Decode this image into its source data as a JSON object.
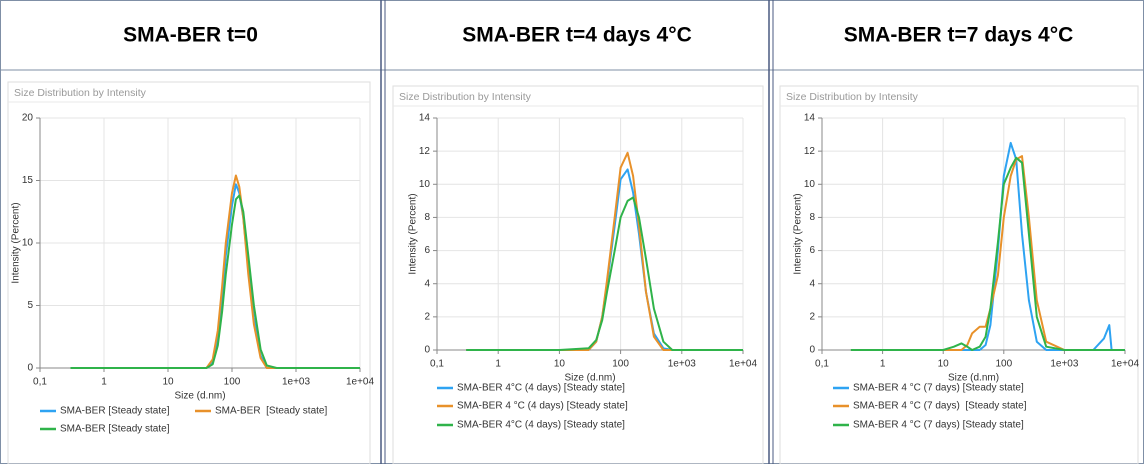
{
  "chart_data": [
    {
      "type": "line",
      "title": "SMA-BER t=0",
      "subtitle": "Size Distribution by Intensity",
      "x_label": "Size (d.nm)",
      "y_label": "Intensity (Percent)",
      "log_scale_x": true,
      "grid": true,
      "xlim": [
        0.1,
        10000
      ],
      "xticks": [
        {
          "value": 0.1,
          "label": "0,1"
        },
        1,
        10,
        100,
        {
          "value": 1000,
          "label": "1e+03"
        },
        {
          "value": 10000,
          "label": "1e+04"
        }
      ],
      "ylim": [
        0,
        20
      ],
      "yticks": [
        0,
        5,
        10,
        15,
        20
      ],
      "x": [
        0.3,
        1,
        10,
        40,
        50,
        60,
        70,
        80,
        100,
        115,
        130,
        150,
        180,
        220,
        280,
        350,
        500,
        1000,
        10000
      ],
      "series": [
        {
          "name": "SMA-BER [Steady state]",
          "color": "#2ea3f2",
          "values": [
            0,
            0,
            0,
            0,
            0.5,
            2.5,
            5.5,
            9,
            13,
            14.7,
            14,
            12,
            8,
            4,
            1,
            0,
            0,
            0,
            0
          ]
        },
        {
          "name": "SMA-BER  [Steady state]",
          "color": "#e8912a",
          "values": [
            0,
            0,
            0,
            0,
            0.7,
            3,
            6.5,
            10,
            14,
            15.4,
            14.5,
            12,
            7.5,
            3.5,
            0.8,
            0,
            0,
            0,
            0
          ]
        },
        {
          "name": "SMA-BER [Steady state]",
          "color": "#2fb34a",
          "values": [
            0,
            0,
            0,
            0,
            0.3,
            1.8,
            4.5,
            7.5,
            11.5,
            13.5,
            13.8,
            12.5,
            9,
            5,
            1.5,
            0.2,
            0,
            0,
            0
          ]
        }
      ]
    },
    {
      "type": "line",
      "title": "SMA-BER t=4 days 4°C",
      "subtitle": "Size Distribution by Intensity",
      "x_label": "Size (d.nm)",
      "y_label": "Intensity (Percent)",
      "log_scale_x": true,
      "grid": true,
      "xlim": [
        0.1,
        10000
      ],
      "xticks": [
        {
          "value": 0.1,
          "label": "0,1"
        },
        1,
        10,
        100,
        {
          "value": 1000,
          "label": "1e+03"
        },
        {
          "value": 10000,
          "label": "1e+04"
        }
      ],
      "ylim": [
        0,
        14
      ],
      "yticks": [
        0,
        2,
        4,
        6,
        8,
        10,
        12,
        14
      ],
      "x": [
        0.3,
        1,
        10,
        30,
        40,
        50,
        60,
        80,
        100,
        130,
        160,
        200,
        260,
        350,
        500,
        700,
        1000,
        10000
      ],
      "series": [
        {
          "name": "SMA-BER 4°C (4 days) [Steady state]",
          "color": "#2ea3f2",
          "values": [
            0,
            0,
            0,
            0,
            0.5,
            2,
            4,
            7.5,
            10.3,
            10.9,
            9.5,
            7,
            3.5,
            1,
            0.1,
            0,
            0,
            0
          ]
        },
        {
          "name": "SMA-BER 4 °C (4 days) [Steady state]",
          "color": "#e8912a",
          "values": [
            0,
            0,
            0,
            0,
            0.5,
            2,
            4.2,
            8,
            11,
            11.9,
            10.5,
            7.5,
            3.5,
            0.8,
            0,
            0,
            0,
            0
          ]
        },
        {
          "name": "SMA-BER 4°C (4 days) [Steady state]",
          "color": "#2fb34a",
          "values": [
            0,
            0,
            0,
            0.1,
            0.6,
            1.8,
            3.5,
            6,
            8,
            9,
            9.2,
            8,
            5.5,
            2.5,
            0.5,
            0,
            0,
            0
          ]
        }
      ]
    },
    {
      "type": "line",
      "title": "SMA-BER t=7 days 4°C",
      "subtitle": "Size Distribution by Intensity",
      "x_label": "Size (d.nm)",
      "y_label": "Intensity (Percent)",
      "log_scale_x": true,
      "grid": true,
      "xlim": [
        0.1,
        10000
      ],
      "xticks": [
        {
          "value": 0.1,
          "label": "0,1"
        },
        1,
        10,
        100,
        {
          "value": 1000,
          "label": "1e+03"
        },
        {
          "value": 10000,
          "label": "1e+04"
        }
      ],
      "ylim": [
        0,
        14
      ],
      "yticks": [
        0,
        2,
        4,
        6,
        8,
        10,
        12,
        14
      ],
      "x": [
        0.3,
        1,
        10,
        15,
        20,
        25,
        30,
        40,
        50,
        60,
        80,
        100,
        130,
        160,
        200,
        260,
        350,
        500,
        1000,
        3000,
        4500,
        5500,
        6000,
        10000
      ],
      "series": [
        {
          "name": "SMA-BER 4 °C (7 days) [Steady state]",
          "color": "#2ea3f2",
          "values": [
            0,
            0,
            0,
            0,
            0,
            0,
            0,
            0,
            0.3,
            1.5,
            6,
            10.5,
            12.5,
            11.5,
            7,
            3,
            0.5,
            0,
            0,
            0,
            0.7,
            1.5,
            0,
            0
          ]
        },
        {
          "name": "SMA-BER 4 °C (7 days)  [Steady state]",
          "color": "#e8912a",
          "values": [
            0,
            0,
            0,
            0,
            0,
            0.3,
            1,
            1.4,
            1.4,
            2.5,
            4.5,
            8,
            10.5,
            11.5,
            11.7,
            8,
            3,
            0.5,
            0,
            0,
            0,
            0,
            0,
            0
          ]
        },
        {
          "name": "SMA-BER 4 °C (7 days) [Steady state]",
          "color": "#2fb34a",
          "values": [
            0,
            0,
            0,
            0.2,
            0.4,
            0.2,
            0,
            0.2,
            0.8,
            2.5,
            6.5,
            10,
            11,
            11.6,
            11.3,
            7,
            2,
            0.2,
            0,
            0,
            0,
            0,
            0,
            0
          ]
        }
      ]
    }
  ]
}
